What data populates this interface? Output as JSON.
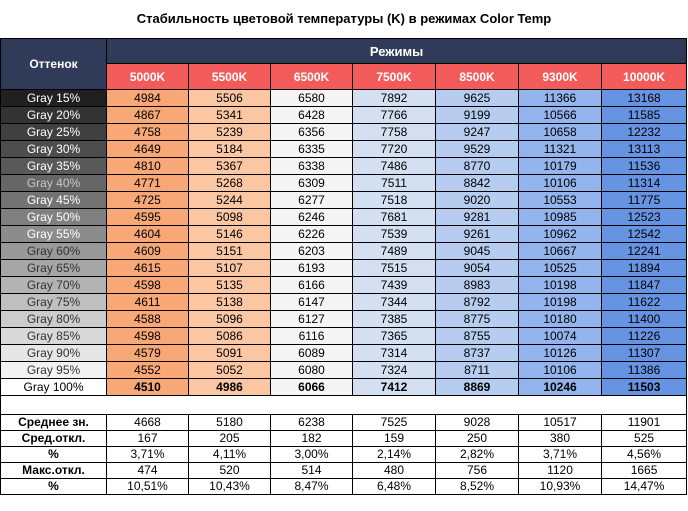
{
  "title": "Стабильность цветовой температуры (K) в режимах Color Temp",
  "header": {
    "shade_label": "Оттенок",
    "modes_label": "Режимы"
  },
  "chart_data": {
    "type": "table",
    "title": "Стабильность цветовой температуры (K) в режимах Color Temp",
    "columns": [
      "5000K",
      "5500K",
      "6500K",
      "7500K",
      "8500K",
      "9300K",
      "10000K"
    ],
    "column_colors": [
      "#f8a877",
      "#fbc7a3",
      "#f5f5f5",
      "#d2e0f2",
      "#b7cdf0",
      "#93b4ec",
      "#6694e2"
    ],
    "rows": [
      {
        "label": "Gray 15%",
        "values": [
          "4984",
          "5506",
          "6580",
          "7892",
          "9625",
          "11366",
          "13168"
        ]
      },
      {
        "label": "Gray 20%",
        "values": [
          "4867",
          "5341",
          "6428",
          "7766",
          "9199",
          "10566",
          "11585"
        ]
      },
      {
        "label": "Gray 25%",
        "values": [
          "4758",
          "5239",
          "6356",
          "7758",
          "9247",
          "10658",
          "12232"
        ]
      },
      {
        "label": "Gray 30%",
        "values": [
          "4649",
          "5184",
          "6335",
          "7720",
          "9529",
          "11321",
          "13113"
        ]
      },
      {
        "label": "Gray 35%",
        "values": [
          "4810",
          "5367",
          "6338",
          "7486",
          "8770",
          "10179",
          "11536"
        ]
      },
      {
        "label": "Gray 40%",
        "values": [
          "4771",
          "5268",
          "6309",
          "7511",
          "8842",
          "10106",
          "11314"
        ]
      },
      {
        "label": "Gray 45%",
        "values": [
          "4725",
          "5244",
          "6277",
          "7518",
          "9020",
          "10553",
          "11775"
        ]
      },
      {
        "label": "Gray 50%",
        "values": [
          "4595",
          "5098",
          "6246",
          "7681",
          "9281",
          "10985",
          "12523"
        ]
      },
      {
        "label": "Gray 55%",
        "values": [
          "4604",
          "5146",
          "6226",
          "7539",
          "9261",
          "10962",
          "12542"
        ]
      },
      {
        "label": "Gray 60%",
        "values": [
          "4609",
          "5151",
          "6203",
          "7489",
          "9045",
          "10667",
          "12241"
        ]
      },
      {
        "label": "Gray 65%",
        "values": [
          "4615",
          "5107",
          "6193",
          "7515",
          "9054",
          "10525",
          "11894"
        ]
      },
      {
        "label": "Gray 70%",
        "values": [
          "4598",
          "5135",
          "6166",
          "7439",
          "8983",
          "10198",
          "11847"
        ]
      },
      {
        "label": "Gray 75%",
        "values": [
          "4611",
          "5138",
          "6147",
          "7344",
          "8792",
          "10198",
          "11622"
        ]
      },
      {
        "label": "Gray 80%",
        "values": [
          "4588",
          "5096",
          "6127",
          "7385",
          "8775",
          "10180",
          "11400"
        ]
      },
      {
        "label": "Gray 85%",
        "values": [
          "4598",
          "5086",
          "6116",
          "7365",
          "8755",
          "10074",
          "11226"
        ]
      },
      {
        "label": "Gray 90%",
        "values": [
          "4579",
          "5091",
          "6089",
          "7314",
          "8737",
          "10126",
          "11307"
        ]
      },
      {
        "label": "Gray 95%",
        "values": [
          "4552",
          "5052",
          "6080",
          "7324",
          "8711",
          "10106",
          "11386"
        ]
      },
      {
        "label": "Gray 100%",
        "values": [
          "4510",
          "4986",
          "6066",
          "7412",
          "8869",
          "10246",
          "11503"
        ]
      }
    ],
    "row_shades": [
      "#202020",
      "#333333",
      "#404040",
      "#4d4d4d",
      "#595959",
      "#666666",
      "#737373",
      "#808080",
      "#8c8c8c",
      "#999999",
      "#a6a6a6",
      "#b3b3b3",
      "#bfbfbf",
      "#cccccc",
      "#d9d9d9",
      "#e6e6e6",
      "#f2f2f2",
      "#ffffff"
    ],
    "stats": [
      {
        "label": "Среднее зн.",
        "values": [
          "4668",
          "5180",
          "6238",
          "7525",
          "9028",
          "10517",
          "11901"
        ]
      },
      {
        "label": "Сред.откл.",
        "values": [
          "167",
          "205",
          "182",
          "159",
          "250",
          "380",
          "525"
        ]
      },
      {
        "label": "%",
        "values": [
          "3,71%",
          "4,11%",
          "3,00%",
          "2,14%",
          "2,82%",
          "3,71%",
          "4,56%"
        ]
      },
      {
        "label": "Макс.откл.",
        "values": [
          "474",
          "520",
          "514",
          "480",
          "756",
          "1120",
          "1665"
        ]
      },
      {
        "label": "%",
        "values": [
          "10,51%",
          "10,43%",
          "8,47%",
          "6,48%",
          "8,52%",
          "10,93%",
          "14,47%"
        ]
      }
    ]
  }
}
